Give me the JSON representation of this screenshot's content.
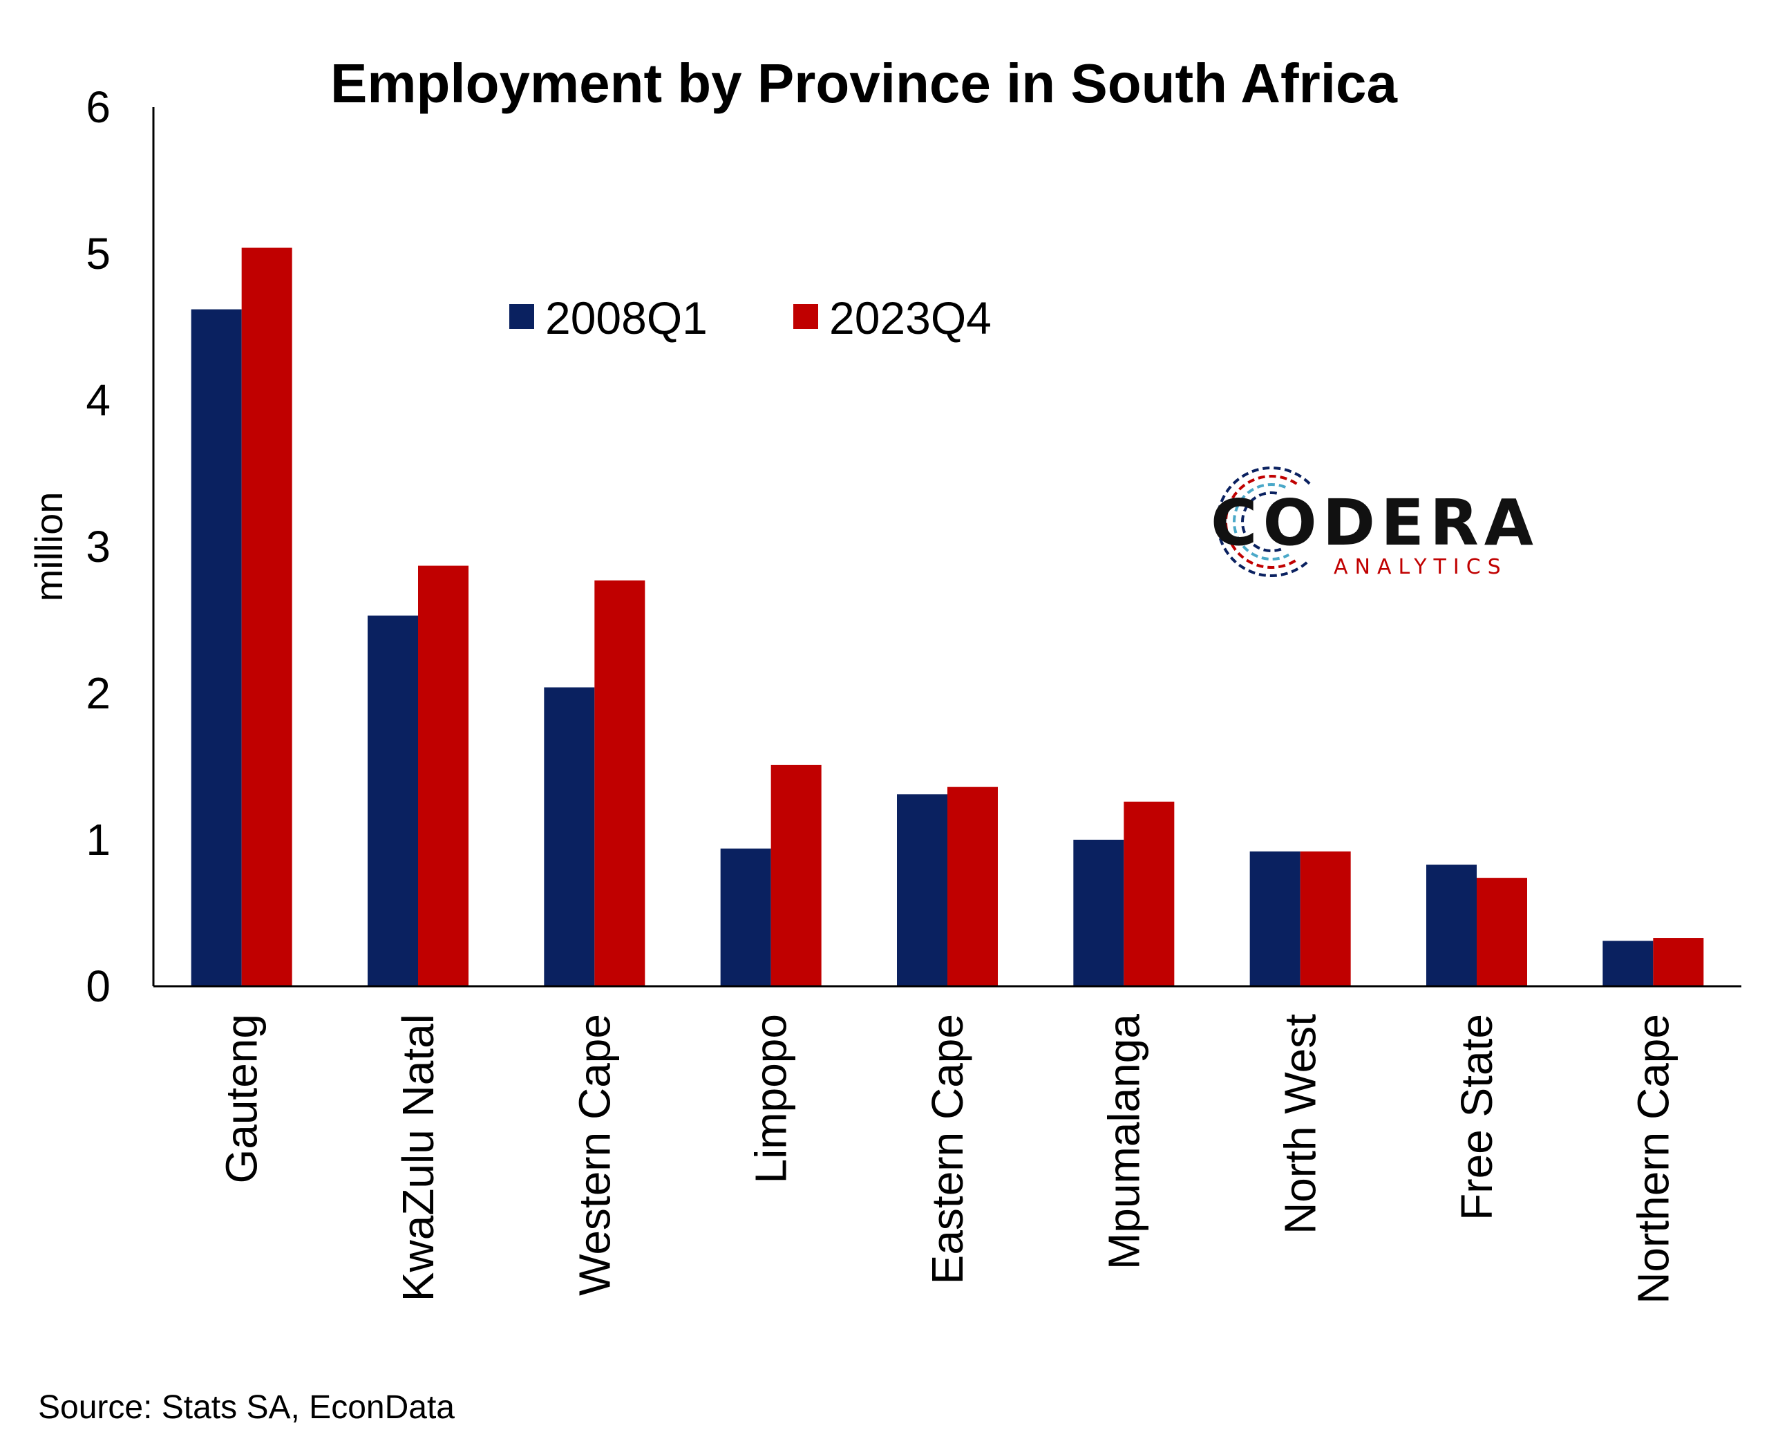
{
  "chart_data": {
    "type": "bar",
    "title": "Employment by Province in South Africa",
    "xlabel": "",
    "ylabel": "million",
    "ylim": [
      0,
      6
    ],
    "yticks": [
      0,
      1,
      2,
      3,
      4,
      5,
      6
    ],
    "grid": false,
    "legend_position": "top-center",
    "categories": [
      "Gauteng",
      "KwaZulu Natal",
      "Western Cape",
      "Limpopo",
      "Eastern Cape",
      "Mpumalanga",
      "North West",
      "Free State",
      "Northern Cape"
    ],
    "series": [
      {
        "name": "2008Q1",
        "color": "#0a2160",
        "values": [
          4.62,
          2.53,
          2.04,
          0.94,
          1.31,
          1.0,
          0.92,
          0.83,
          0.31
        ]
      },
      {
        "name": "2023Q4",
        "color": "#c00000",
        "values": [
          5.04,
          2.87,
          2.77,
          1.51,
          1.36,
          1.26,
          0.92,
          0.74,
          0.33
        ]
      }
    ],
    "source": "Source: Stats SA, EconData"
  },
  "logo": {
    "name": "CODERA",
    "tagline": "ANALYTICS",
    "colors": [
      "#0a2160",
      "#c00000",
      "#4aa8c8"
    ]
  }
}
